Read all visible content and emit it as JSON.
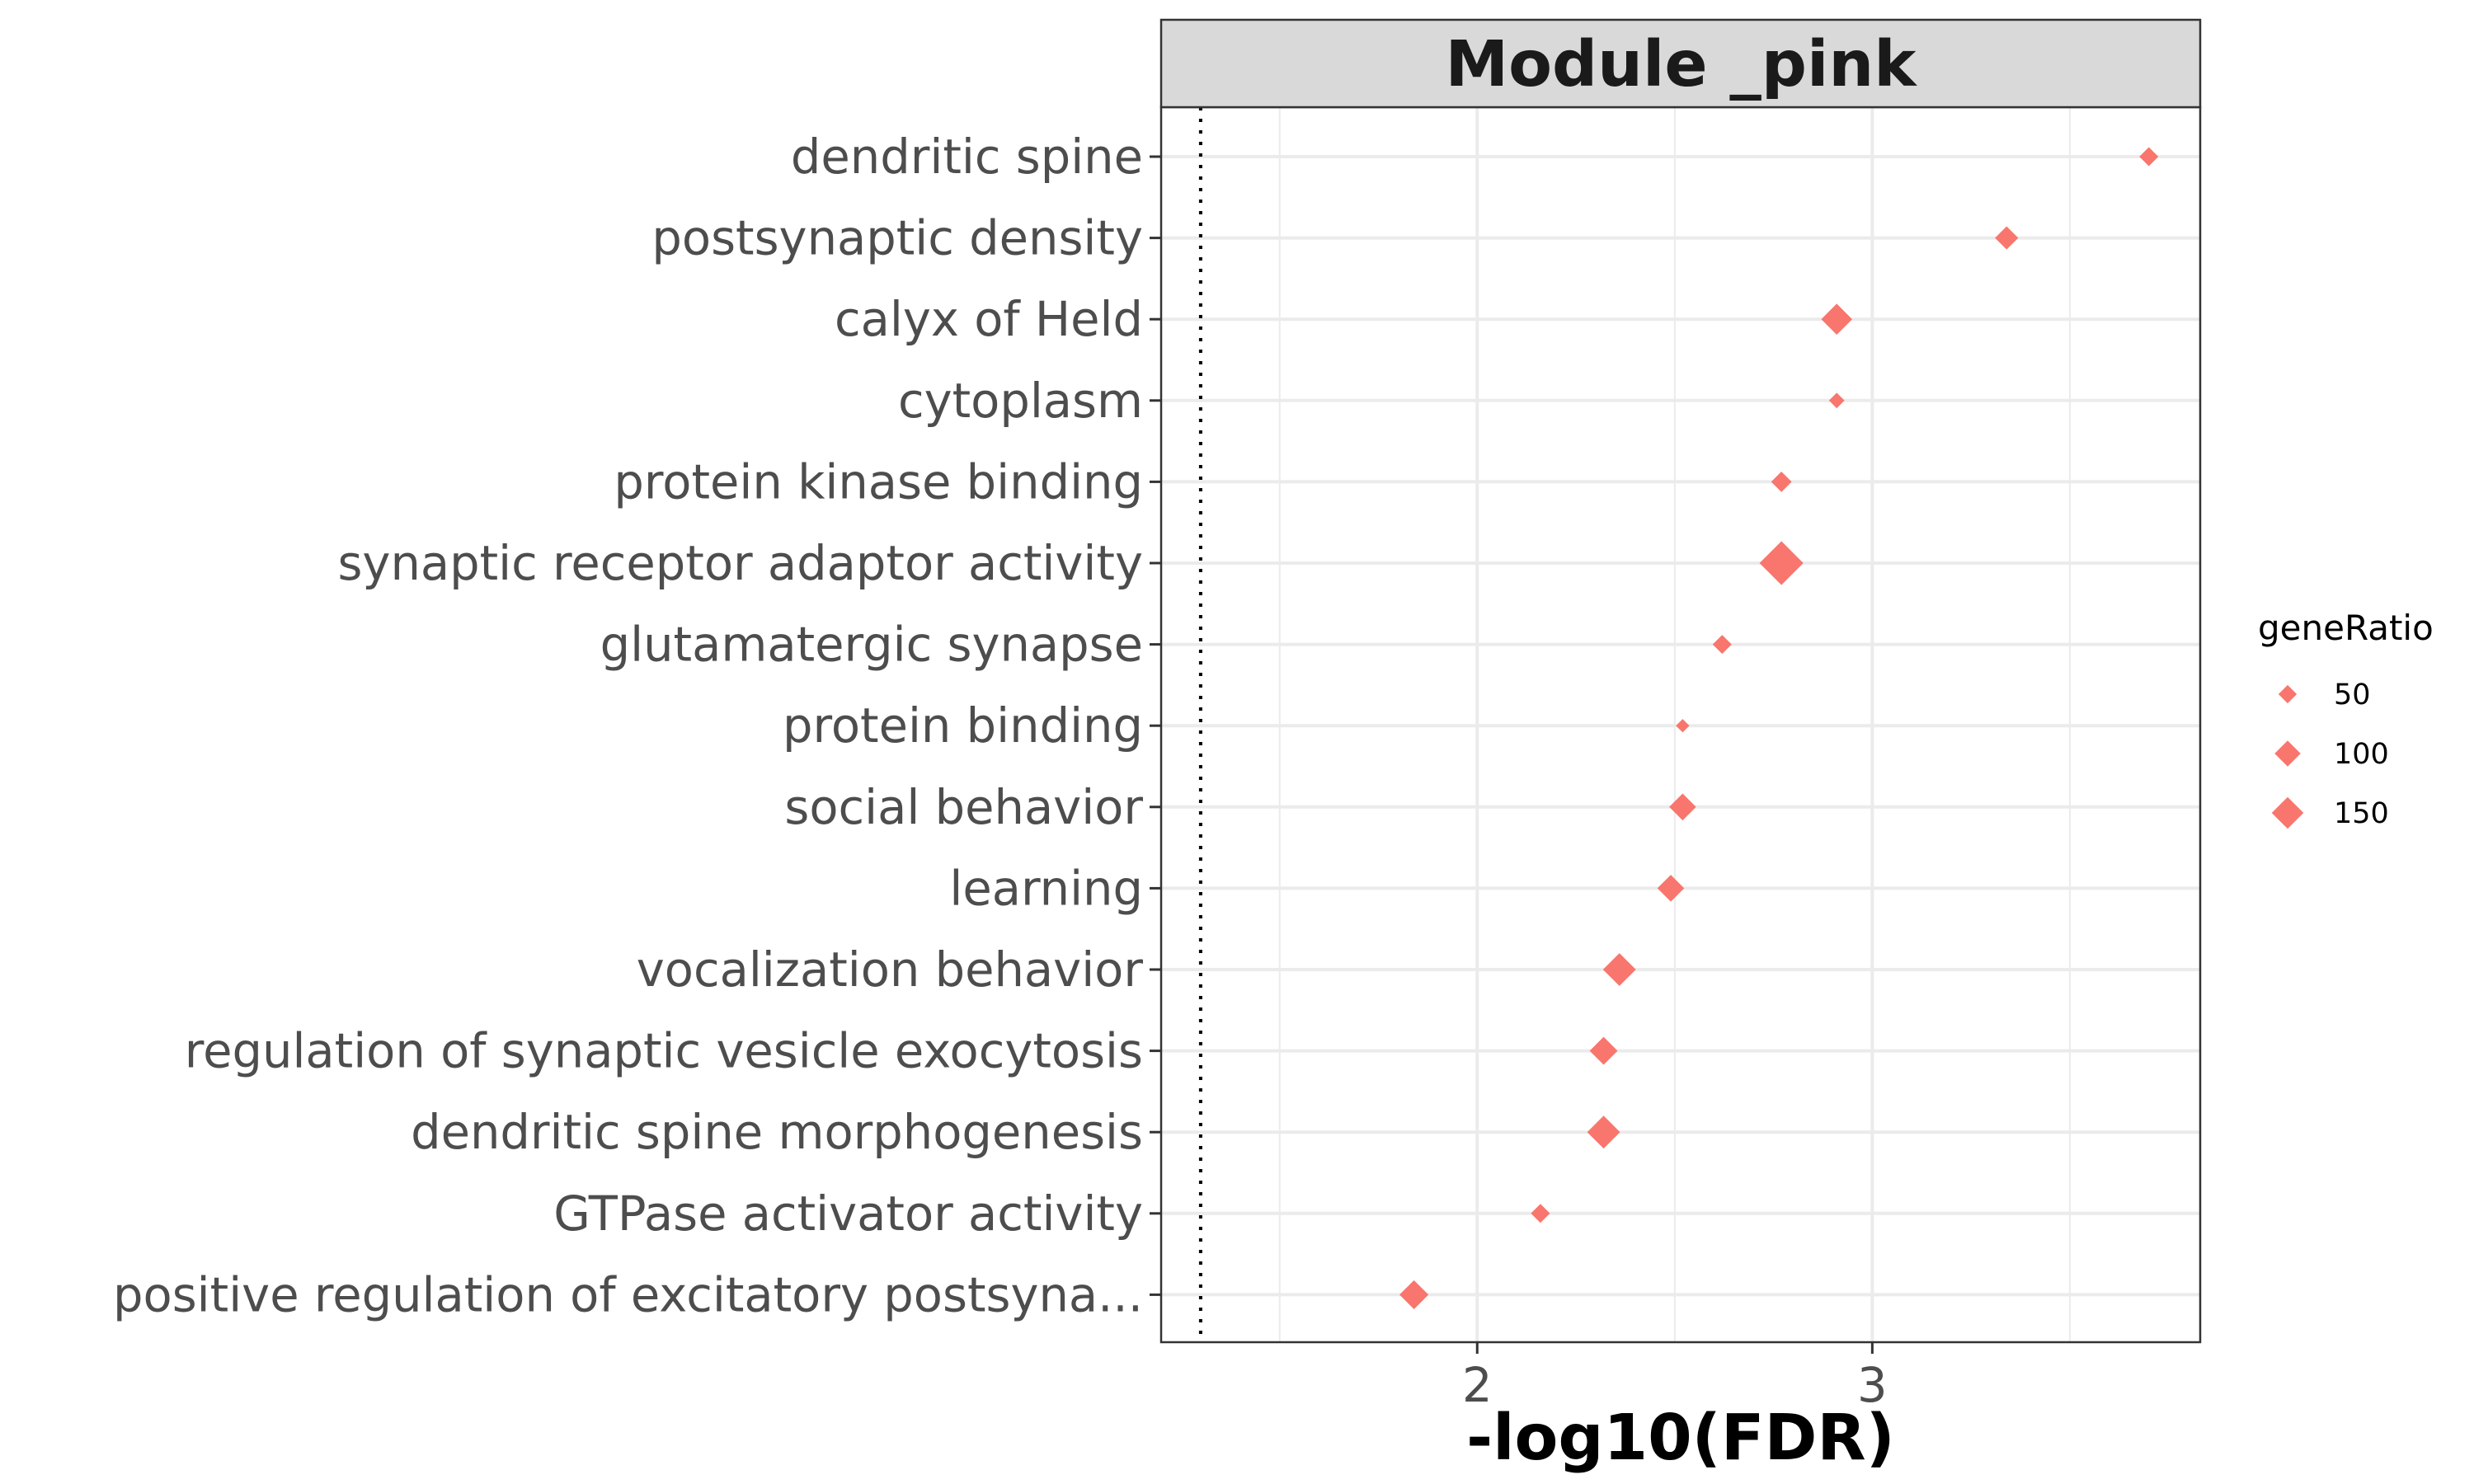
{
  "chart_data": {
    "type": "scatter",
    "strip_title": "Module _pink",
    "xlabel": "-log10(FDR)",
    "ylabel": "",
    "xlim": [
      1.2,
      3.83
    ],
    "x_ticks": [
      2,
      3
    ],
    "threshold_line_x": 1.3,
    "grid": true,
    "marker": "diamond",
    "marker_color": "#F8766D",
    "size_legend": {
      "title": "geneRatio",
      "position": "right",
      "entries": [
        {
          "label": "50",
          "value": 50
        },
        {
          "label": "100",
          "value": 100
        },
        {
          "label": "150",
          "value": 150
        }
      ]
    },
    "points": [
      {
        "term": "dendritic spine",
        "x": 3.7,
        "size": 30
      },
      {
        "term": "postsynaptic density",
        "x": 3.34,
        "size": 45
      },
      {
        "term": "calyx of Held",
        "x": 2.91,
        "size": 80
      },
      {
        "term": "cytoplasm",
        "x": 2.91,
        "size": 20
      },
      {
        "term": "protein kinase binding",
        "x": 2.77,
        "size": 35
      },
      {
        "term": "synaptic receptor adaptor activity",
        "x": 2.77,
        "size": 160
      },
      {
        "term": "glutamatergic synapse",
        "x": 2.62,
        "size": 30
      },
      {
        "term": "protein binding",
        "x": 2.52,
        "size": 15
      },
      {
        "term": "social behavior",
        "x": 2.52,
        "size": 60
      },
      {
        "term": "learning",
        "x": 2.49,
        "size": 60
      },
      {
        "term": "vocalization behavior",
        "x": 2.36,
        "size": 90
      },
      {
        "term": "regulation of synaptic vesicle exocytosis",
        "x": 2.32,
        "size": 65
      },
      {
        "term": "dendritic spine morphogenesis",
        "x": 2.32,
        "size": 90
      },
      {
        "term": "GTPase activator activity",
        "x": 2.16,
        "size": 30
      },
      {
        "term": "positive regulation of excitatory postsyna...",
        "x": 1.84,
        "size": 70
      }
    ]
  }
}
